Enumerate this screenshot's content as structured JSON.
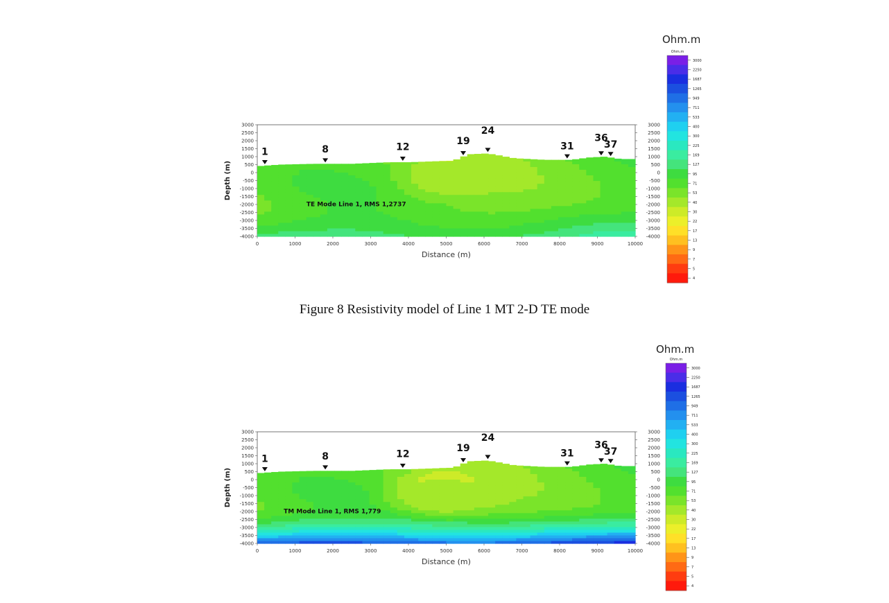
{
  "caption": "Figure 8  Resistivity model of Line 1 MT 2-D TE mode",
  "colorbar": {
    "unit": "Ohm.m",
    "unit_small": "Ohm.m",
    "labels": [
      "3000",
      "2250",
      "1687",
      "1265",
      "949",
      "711",
      "533",
      "400",
      "300",
      "225",
      "169",
      "127",
      "95",
      "71",
      "53",
      "40",
      "30",
      "22",
      "17",
      "13",
      "9",
      "7",
      "5",
      "4"
    ],
    "colors": [
      "#7a1fe6",
      "#4a2de8",
      "#1a2ee0",
      "#1b4fe0",
      "#1f6fe6",
      "#2390ee",
      "#22b0f2",
      "#1fd0f0",
      "#22e4e0",
      "#2ae8c0",
      "#3aeca0",
      "#44e47c",
      "#3edc40",
      "#52e02e",
      "#7ae42a",
      "#a4e82a",
      "#cdeb28",
      "#ecef2a",
      "#ffe028",
      "#ffc020",
      "#ff9418",
      "#ff6a14",
      "#ff3c10",
      "#ff1a0c"
    ]
  },
  "chart_data": [
    {
      "type": "heatmap",
      "annotation": "TE Mode Line 1, RMS 1,2737",
      "xlabel": "Distance (m)",
      "ylabel": "Depth (m)",
      "xlim": [
        0,
        10000
      ],
      "ylim": [
        -4000,
        3000
      ],
      "x_ticks": [
        "0",
        "1000",
        "2000",
        "3000",
        "4000",
        "5000",
        "6000",
        "7000",
        "8000",
        "9000",
        "10000"
      ],
      "y_ticks": [
        "3000",
        "2500",
        "2000",
        "1500",
        "1000",
        "500",
        "0",
        "-500",
        "-1000",
        "-1500",
        "-2000",
        "-2500",
        "-3000",
        "-3500",
        "-4000"
      ],
      "stations": [
        {
          "label": "1",
          "x": 200,
          "elevation": 500
        },
        {
          "label": "8",
          "x": 1800,
          "elevation": 650
        },
        {
          "label": "12",
          "x": 3850,
          "elevation": 800
        },
        {
          "label": "19",
          "x": 5450,
          "elevation": 1000
        },
        {
          "label": "24",
          "x": 6100,
          "elevation": 1300
        },
        {
          "label": "31",
          "x": 8200,
          "elevation": 850
        },
        {
          "label": "36",
          "x": 9100,
          "elevation": 1100
        },
        {
          "label": "37",
          "x": 9350,
          "elevation": 950
        }
      ],
      "surface": [
        [
          0,
          400
        ],
        [
          600,
          500
        ],
        [
          1500,
          550
        ],
        [
          2500,
          550
        ],
        [
          3500,
          650
        ],
        [
          4000,
          650
        ],
        [
          4600,
          700
        ],
        [
          5200,
          750
        ],
        [
          5600,
          1150
        ],
        [
          6100,
          1200
        ],
        [
          6800,
          900
        ],
        [
          7600,
          800
        ],
        [
          8300,
          800
        ],
        [
          8800,
          950
        ],
        [
          9200,
          1000
        ],
        [
          9600,
          850
        ],
        [
          10000,
          850
        ]
      ],
      "anomalies": [
        {
          "x": 5000,
          "y": 200,
          "rx": 900,
          "ry": 1000,
          "resistivity": 22
        },
        {
          "x": 5000,
          "y": -300,
          "rx": 1600,
          "ry": 1700,
          "resistivity": 40
        }
      ],
      "background_resistivity": 60,
      "deep_resistivity": 127
    },
    {
      "type": "heatmap",
      "annotation": "TM Mode Line 1, RMS 1,779",
      "xlabel": "Distance (m)",
      "ylabel": "Depth (m)",
      "xlim": [
        0,
        10000
      ],
      "ylim": [
        -4000,
        3000
      ],
      "x_ticks": [
        "0",
        "1000",
        "2000",
        "3000",
        "4000",
        "5000",
        "6000",
        "7000",
        "8000",
        "9000",
        "10000"
      ],
      "y_ticks": [
        "3000",
        "2500",
        "2000",
        "1500",
        "1000",
        "500",
        "0",
        "-500",
        "-1000",
        "-1500",
        "-2000",
        "-2500",
        "-3000",
        "-3500",
        "-4000"
      ],
      "stations": [
        {
          "label": "1",
          "x": 200,
          "elevation": 500
        },
        {
          "label": "8",
          "x": 1800,
          "elevation": 650
        },
        {
          "label": "12",
          "x": 3850,
          "elevation": 800
        },
        {
          "label": "19",
          "x": 5450,
          "elevation": 1000
        },
        {
          "label": "24",
          "x": 6100,
          "elevation": 1300
        },
        {
          "label": "31",
          "x": 8200,
          "elevation": 850
        },
        {
          "label": "36",
          "x": 9100,
          "elevation": 1100
        },
        {
          "label": "37",
          "x": 9350,
          "elevation": 950
        }
      ],
      "surface": [
        [
          0,
          400
        ],
        [
          600,
          500
        ],
        [
          1500,
          550
        ],
        [
          2500,
          550
        ],
        [
          3500,
          650
        ],
        [
          4000,
          650
        ],
        [
          4600,
          700
        ],
        [
          5200,
          750
        ],
        [
          5600,
          1150
        ],
        [
          6100,
          1200
        ],
        [
          6800,
          900
        ],
        [
          7600,
          800
        ],
        [
          8300,
          800
        ],
        [
          8800,
          950
        ],
        [
          9200,
          1000
        ],
        [
          9600,
          850
        ],
        [
          10000,
          850
        ]
      ],
      "anomalies": [
        {
          "x": 4950,
          "y": -500,
          "rx": 900,
          "ry": 1100,
          "resistivity": 4
        },
        {
          "x": 4950,
          "y": -600,
          "rx": 1400,
          "ry": 1500,
          "resistivity": 17
        },
        {
          "x": 4950,
          "y": -700,
          "rx": 2100,
          "ry": 2000,
          "resistivity": 40
        }
      ],
      "background_resistivity": 60,
      "deep_resistivity": 1265
    }
  ]
}
